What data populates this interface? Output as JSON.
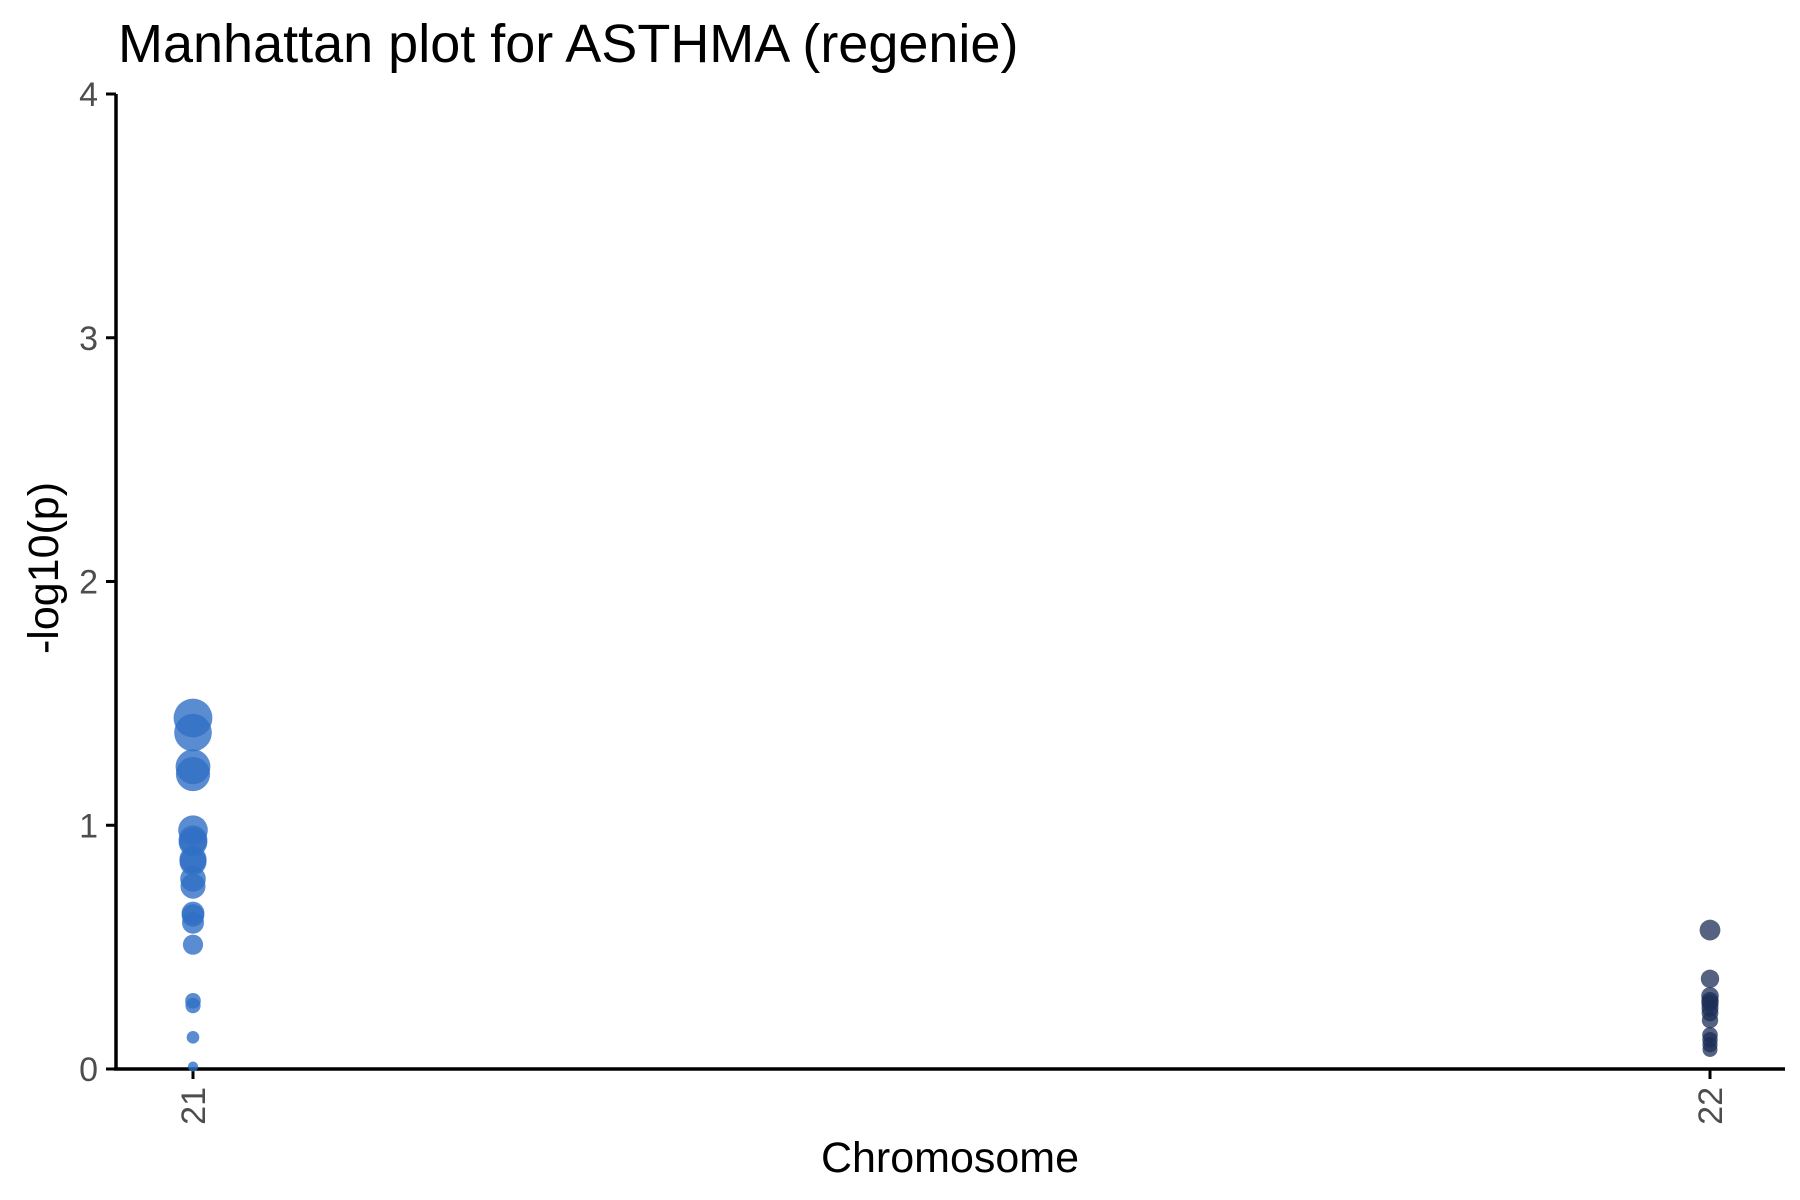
{
  "chart_data": {
    "type": "scatter",
    "title": "Manhattan plot for ASTHMA (regenie)",
    "xlabel": "Chromosome",
    "ylabel": "-log10(p)",
    "ylim": [
      0,
      4
    ],
    "yticks": [
      0,
      1,
      2,
      3,
      4
    ],
    "categories": [
      "21",
      "22"
    ],
    "grid": false,
    "legend": "none",
    "series": [
      {
        "category": "21",
        "color": "#2f6fc4",
        "values": [
          1.44,
          1.38,
          1.24,
          1.21,
          0.98,
          0.94,
          0.93,
          0.86,
          0.85,
          0.78,
          0.75,
          0.64,
          0.63,
          0.6,
          0.51,
          0.28,
          0.26,
          0.13,
          0.01
        ]
      },
      {
        "category": "22",
        "color": "#1c2e57",
        "values": [
          0.57,
          0.37,
          0.3,
          0.28,
          0.27,
          0.25,
          0.23,
          0.2,
          0.14,
          0.12,
          0.1,
          0.08
        ]
      }
    ]
  }
}
